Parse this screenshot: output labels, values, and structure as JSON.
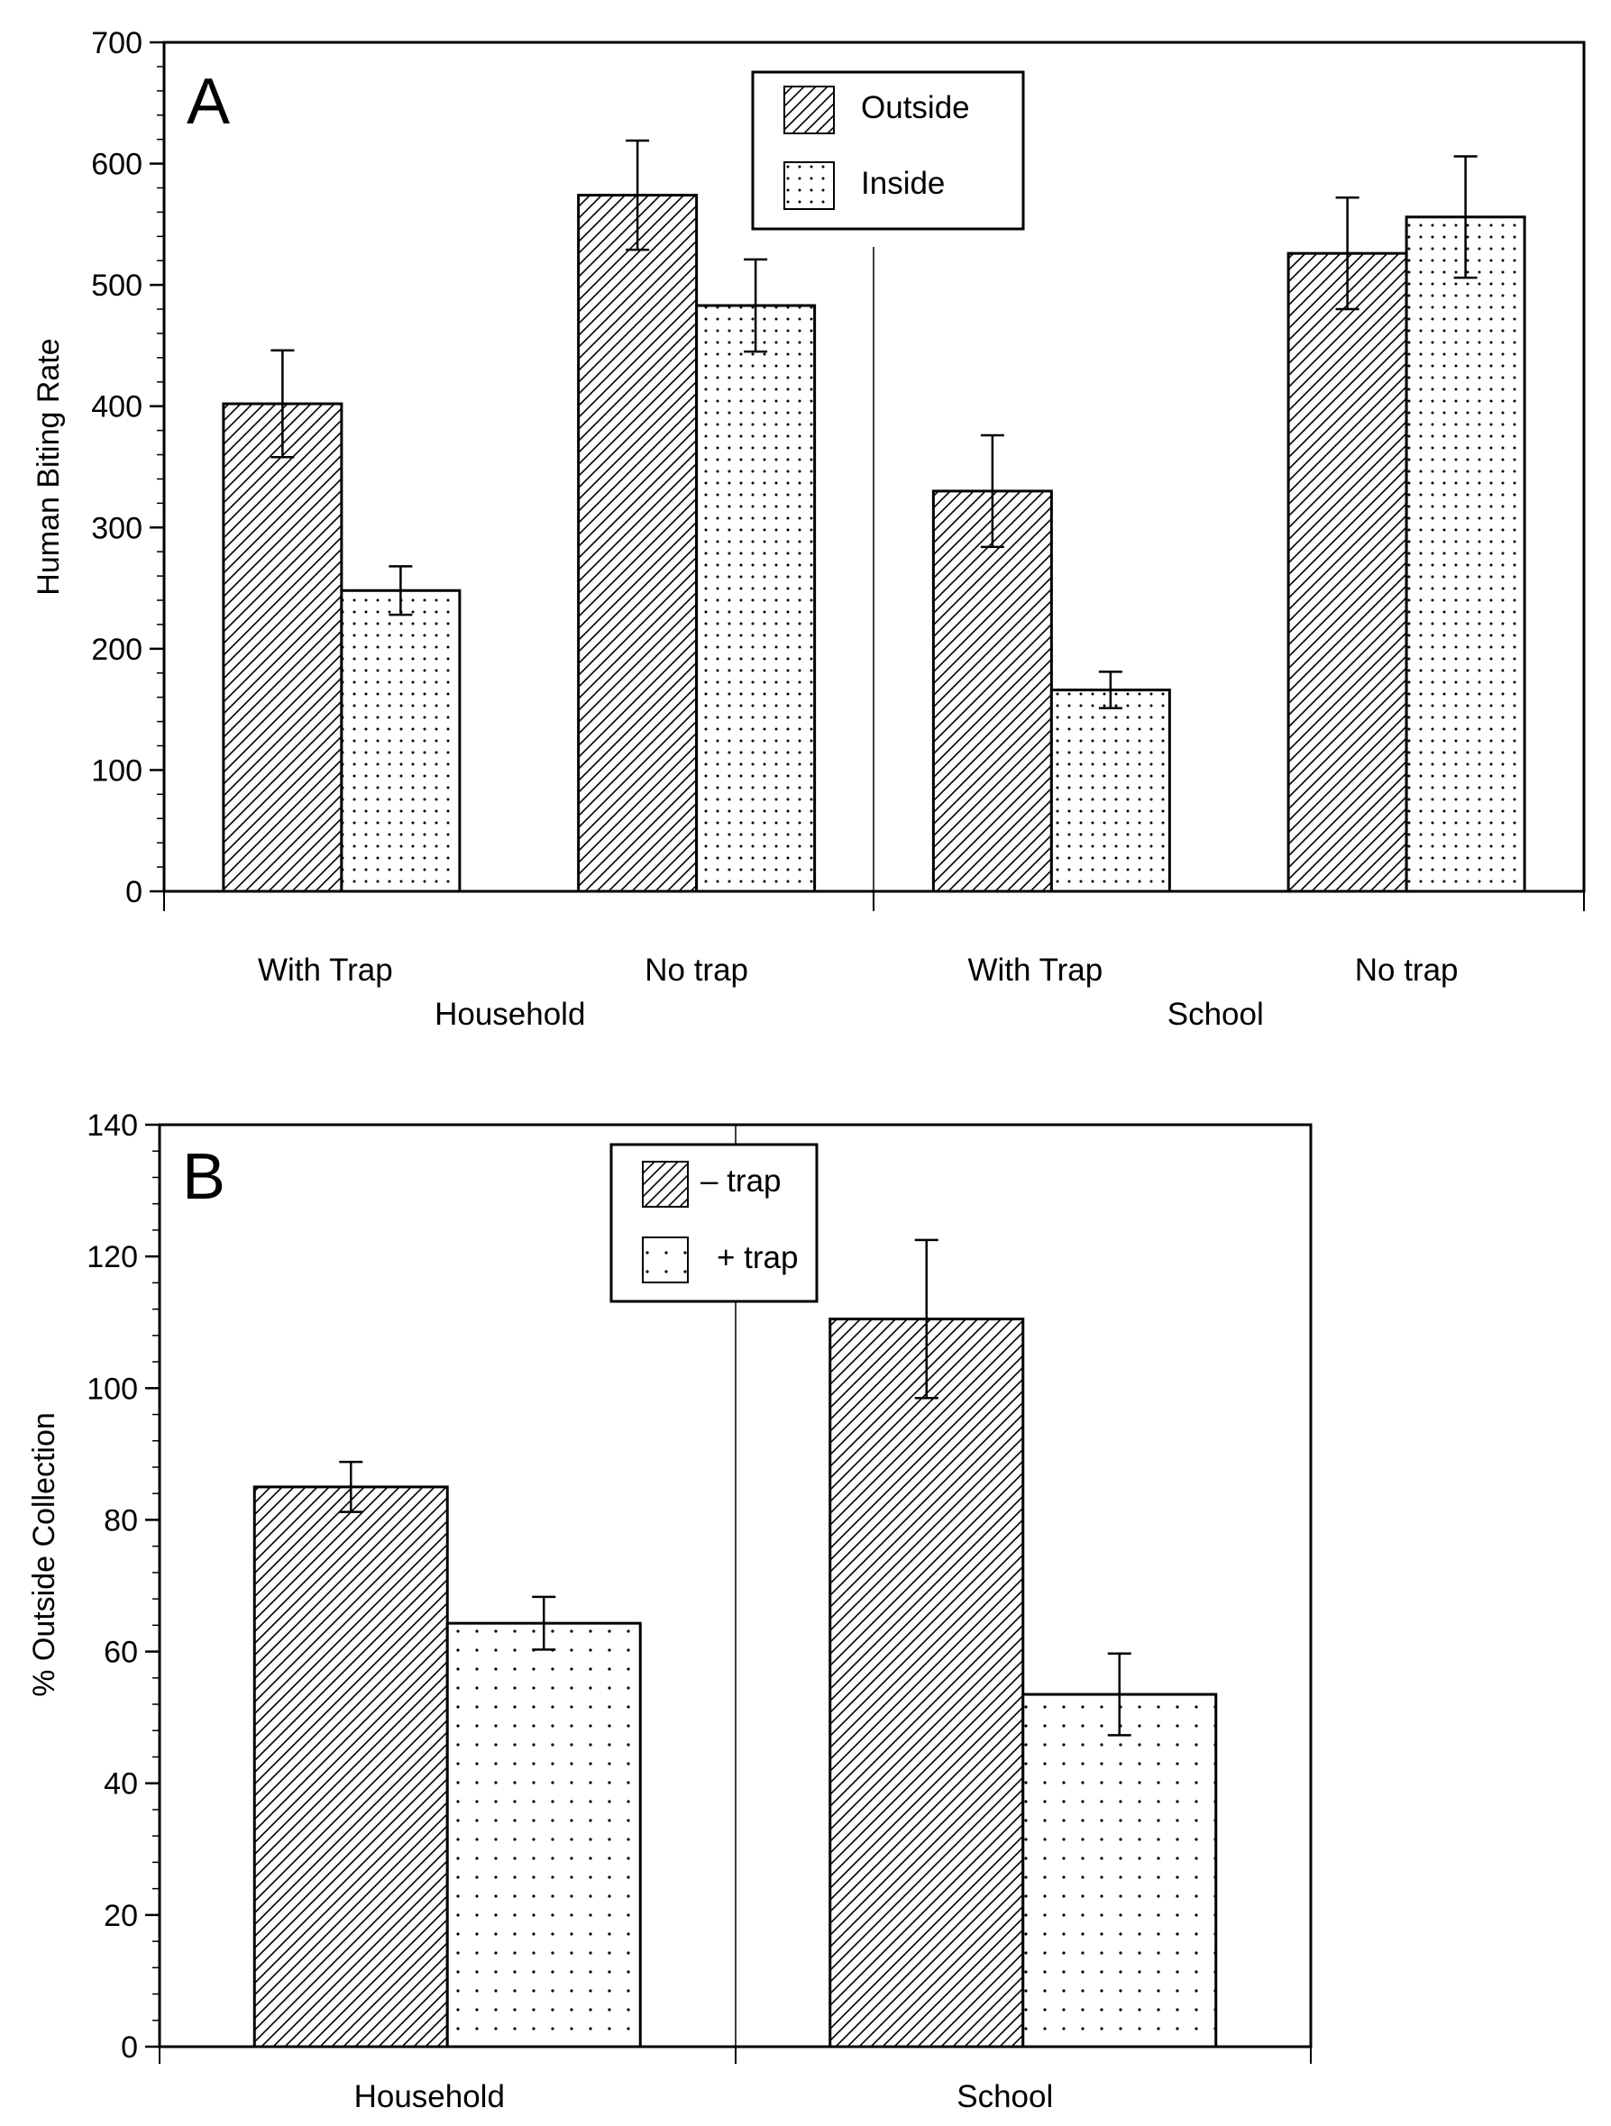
{
  "chart_data": [
    {
      "type": "bar",
      "panel_label": "A",
      "ylabel": "Human Biting Rate",
      "ylim": [
        0,
        700
      ],
      "y_ticks": [
        0,
        100,
        200,
        300,
        400,
        500,
        600,
        700
      ],
      "grid": false,
      "legend_position": "top-center",
      "groups": [
        "Household",
        "School"
      ],
      "categories": [
        "With Trap",
        "No trap",
        "With Trap",
        "No trap"
      ],
      "category_group": [
        0,
        0,
        1,
        1
      ],
      "series": [
        {
          "name": "Outside",
          "pattern": "hatch",
          "values": [
            402,
            574,
            330,
            526
          ],
          "errors": [
            44,
            45,
            46,
            46
          ]
        },
        {
          "name": "Inside",
          "pattern": "dots",
          "values": [
            248,
            483,
            166,
            556
          ],
          "errors": [
            20,
            38,
            15,
            50
          ]
        }
      ]
    },
    {
      "type": "bar",
      "panel_label": "B",
      "ylabel": "% Outside Collection",
      "ylim": [
        0,
        140
      ],
      "y_ticks": [
        0,
        20,
        40,
        60,
        80,
        100,
        120,
        140
      ],
      "grid": false,
      "legend_position": "top-center",
      "categories": [
        "Household",
        "School"
      ],
      "series": [
        {
          "name": "– trap",
          "pattern": "hatch",
          "values": [
            85,
            110.5
          ],
          "errors": [
            3.8,
            12
          ]
        },
        {
          "name": "+ trap",
          "pattern": "dots",
          "values": [
            64.3,
            53.5
          ],
          "errors": [
            4,
            6.2
          ]
        }
      ]
    }
  ],
  "colors": {
    "ink": "#000000",
    "background": "#ffffff"
  }
}
